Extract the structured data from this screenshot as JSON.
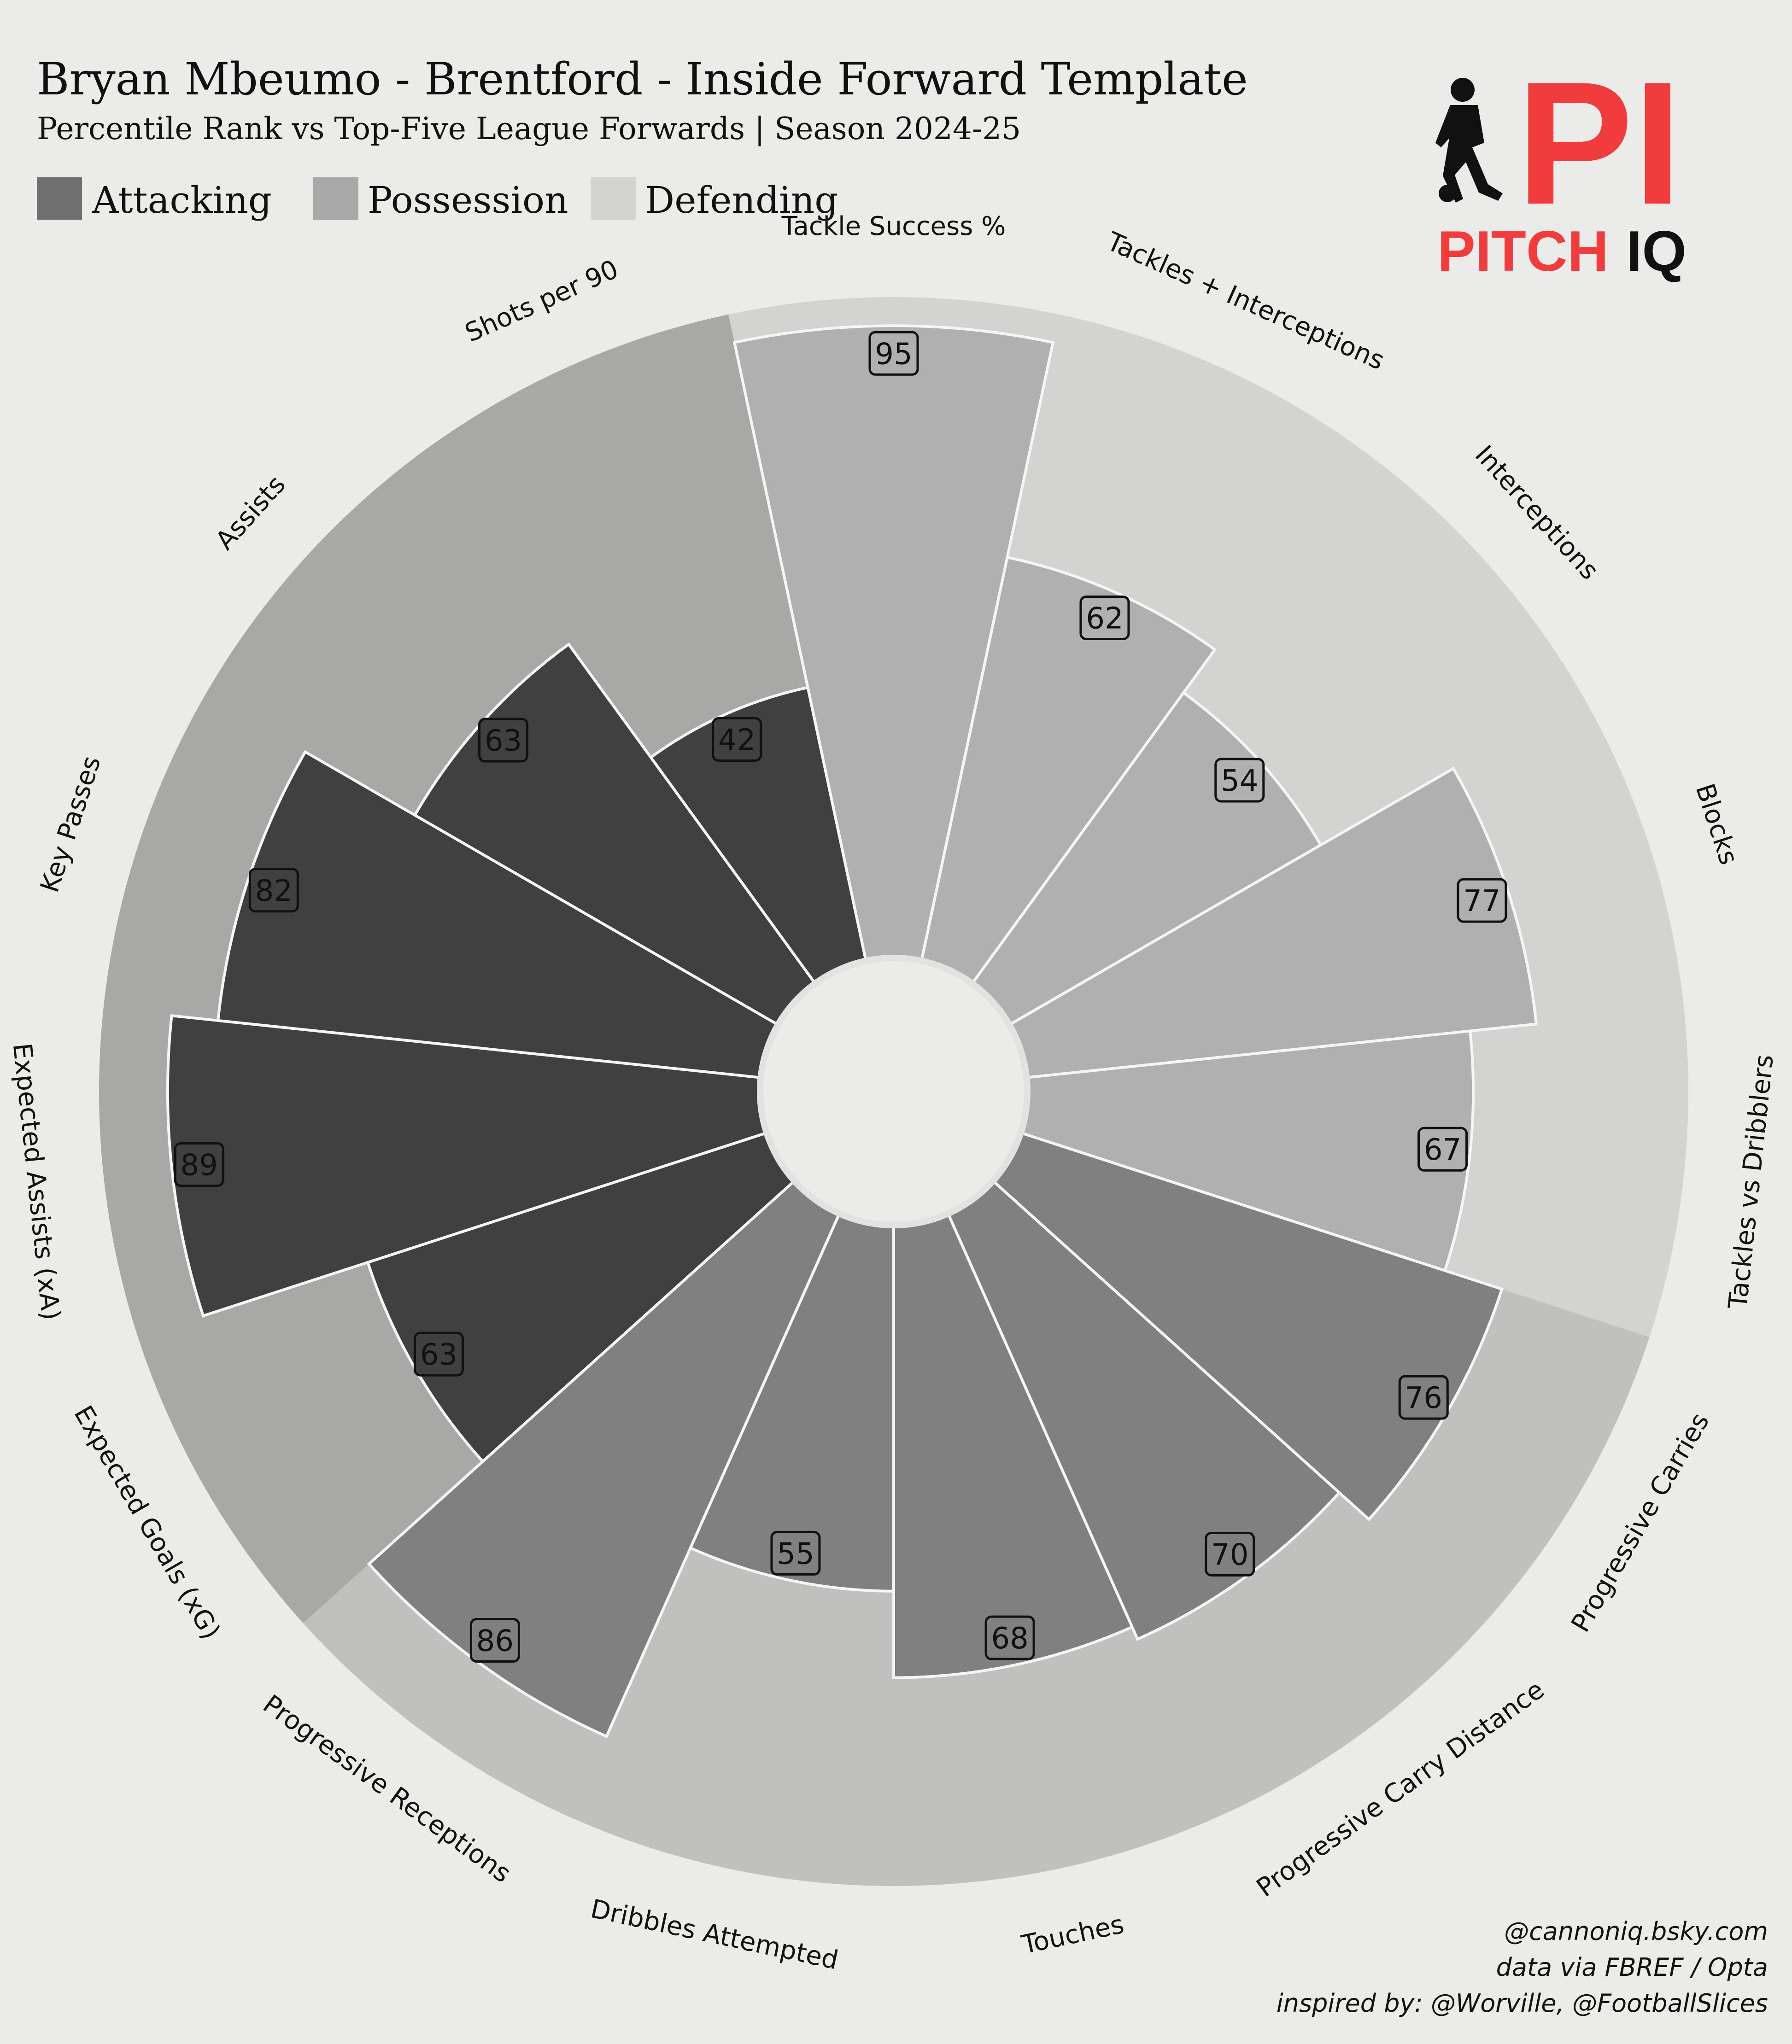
{
  "header": {
    "title": "Bryan Mbeumo - Brentford - Inside Forward Template",
    "subtitle": "Percentile Rank vs Top-Five League Forwards | Season 2024-25"
  },
  "legend": [
    {
      "label": "Attacking",
      "color": "#6f6f6f"
    },
    {
      "label": "Possession",
      "color": "#a8a8a8"
    },
    {
      "label": "Defending",
      "color": "#d3d3d1"
    }
  ],
  "logo": {
    "pitch": "PITCH",
    "iq": "IQ",
    "icon": "player-silhouette-icon",
    "brand_color": "#f03c3c"
  },
  "colors": {
    "background": "#ebebe9",
    "attacking_wedge": "#404040",
    "possession_wedge": "#808080",
    "defending_wedge": "#b0b0b0",
    "attacking_bg": "#a8a8a6",
    "possession_bg": "#c0c0be",
    "defending_bg": "#d3d3d1",
    "wedge_edge": "#f5f5f5"
  },
  "chart_data": {
    "type": "polar-bar",
    "rlim": [
      0,
      100
    ],
    "categories": [
      {
        "name": "Tackle Success %",
        "value": 95,
        "group": "Defending"
      },
      {
        "name": "Tackles + Interceptions",
        "value": 62,
        "group": "Defending"
      },
      {
        "name": "Interceptions",
        "value": 54,
        "group": "Defending"
      },
      {
        "name": "Blocks",
        "value": 77,
        "group": "Defending"
      },
      {
        "name": "Tackles vs Dribblers",
        "value": 67,
        "group": "Defending"
      },
      {
        "name": "Progressive Carries",
        "value": 76,
        "group": "Possession"
      },
      {
        "name": "Progressive Carry Distance",
        "value": 70,
        "group": "Possession"
      },
      {
        "name": "Touches",
        "value": 68,
        "group": "Possession"
      },
      {
        "name": "Dribbles Attempted",
        "value": 55,
        "group": "Possession"
      },
      {
        "name": "Progressive Receptions",
        "value": 86,
        "group": "Possession"
      },
      {
        "name": "Expected Goals (xG)",
        "value": 63,
        "group": "Attacking"
      },
      {
        "name": "Expected Assists (xA)",
        "value": 89,
        "group": "Attacking"
      },
      {
        "name": "Key Passes",
        "value": 82,
        "group": "Attacking"
      },
      {
        "name": "Assists",
        "value": 63,
        "group": "Attacking"
      },
      {
        "name": "Shots per 90",
        "value": 42,
        "group": "Attacking"
      }
    ]
  },
  "credits": [
    "@cannoniq.bsky.com",
    "data via FBREF / Opta",
    "inspired by: @Worville, @FootballSlices"
  ]
}
